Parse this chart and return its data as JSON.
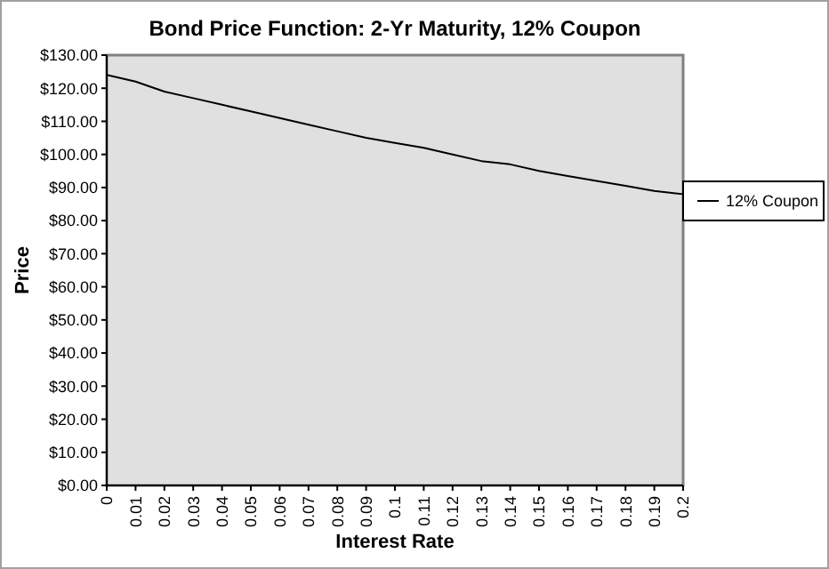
{
  "chart_data": {
    "type": "line",
    "title": "Bond Price Function: 2-Yr Maturity, 12% Coupon",
    "xlabel": "Interest Rate",
    "ylabel": "Price",
    "x": [
      0,
      0.01,
      0.02,
      0.03,
      0.04,
      0.05,
      0.06,
      0.07,
      0.08,
      0.09,
      0.1,
      0.11,
      0.12,
      0.13,
      0.14,
      0.15,
      0.16,
      0.17,
      0.18,
      0.19,
      0.2
    ],
    "series": [
      {
        "name": "12% Coupon",
        "color": "#000000",
        "values": [
          124,
          122,
          119,
          117,
          115,
          113,
          111,
          109,
          107,
          105,
          103.5,
          102,
          100,
          98,
          97,
          95,
          93.5,
          92,
          90.5,
          89,
          88
        ]
      }
    ],
    "xlim": [
      0,
      0.2
    ],
    "xticks": [
      0,
      0.01,
      0.02,
      0.03,
      0.04,
      0.05,
      0.06,
      0.07,
      0.08,
      0.09,
      0.1,
      0.11,
      0.12,
      0.13,
      0.14,
      0.15,
      0.16,
      0.17,
      0.18,
      0.19,
      0.2
    ],
    "ylim": [
      0,
      130
    ],
    "yticks": [
      {
        "value": 0,
        "label": "$0.00"
      },
      {
        "value": 10,
        "label": "$10.00"
      },
      {
        "value": 20,
        "label": "$20.00"
      },
      {
        "value": 30,
        "label": "$30.00"
      },
      {
        "value": 40,
        "label": "$40.00"
      },
      {
        "value": 50,
        "label": "$50.00"
      },
      {
        "value": 60,
        "label": "$60.00"
      },
      {
        "value": 70,
        "label": "$70.00"
      },
      {
        "value": 80,
        "label": "$80.00"
      },
      {
        "value": 90,
        "label": "$90.00"
      },
      {
        "value": 100,
        "label": "$100.00"
      },
      {
        "value": 110,
        "label": "$110.00"
      },
      {
        "value": 120,
        "label": "$120.00"
      },
      {
        "value": 130,
        "label": "$130.00"
      }
    ],
    "grid": false,
    "legend": "right",
    "marker": "none",
    "line_style": "solid"
  }
}
